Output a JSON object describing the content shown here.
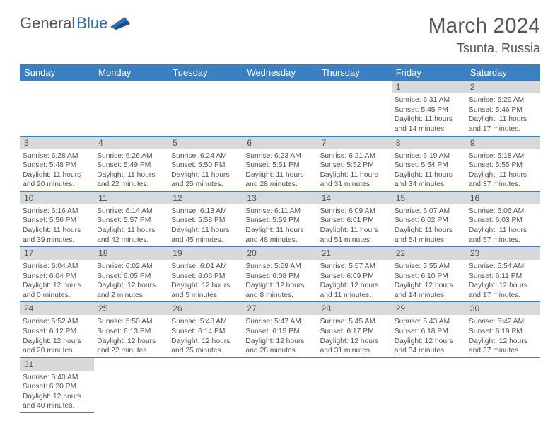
{
  "logo": {
    "word1": "General",
    "word2": "Blue"
  },
  "title": "March 2024",
  "location": "Tsunta, Russia",
  "colors": {
    "header_bg": "#3a81c4",
    "header_fg": "#ffffff",
    "daynum_bg": "#d7d9db",
    "border": "#3a81c4",
    "logo_accent": "#2a6db8"
  },
  "weekdays": [
    "Sunday",
    "Monday",
    "Tuesday",
    "Wednesday",
    "Thursday",
    "Friday",
    "Saturday"
  ],
  "weeks": [
    [
      null,
      null,
      null,
      null,
      null,
      {
        "n": "1",
        "sr": "6:31 AM",
        "ss": "5:45 PM",
        "dl": "11 hours and 14 minutes."
      },
      {
        "n": "2",
        "sr": "6:29 AM",
        "ss": "5:46 PM",
        "dl": "11 hours and 17 minutes."
      }
    ],
    [
      {
        "n": "3",
        "sr": "6:28 AM",
        "ss": "5:48 PM",
        "dl": "11 hours and 20 minutes."
      },
      {
        "n": "4",
        "sr": "6:26 AM",
        "ss": "5:49 PM",
        "dl": "11 hours and 22 minutes."
      },
      {
        "n": "5",
        "sr": "6:24 AM",
        "ss": "5:50 PM",
        "dl": "11 hours and 25 minutes."
      },
      {
        "n": "6",
        "sr": "6:23 AM",
        "ss": "5:51 PM",
        "dl": "11 hours and 28 minutes."
      },
      {
        "n": "7",
        "sr": "6:21 AM",
        "ss": "5:52 PM",
        "dl": "11 hours and 31 minutes."
      },
      {
        "n": "8",
        "sr": "6:19 AM",
        "ss": "5:54 PM",
        "dl": "11 hours and 34 minutes."
      },
      {
        "n": "9",
        "sr": "6:18 AM",
        "ss": "5:55 PM",
        "dl": "11 hours and 37 minutes."
      }
    ],
    [
      {
        "n": "10",
        "sr": "6:16 AM",
        "ss": "5:56 PM",
        "dl": "11 hours and 39 minutes."
      },
      {
        "n": "11",
        "sr": "6:14 AM",
        "ss": "5:57 PM",
        "dl": "11 hours and 42 minutes."
      },
      {
        "n": "12",
        "sr": "6:13 AM",
        "ss": "5:58 PM",
        "dl": "11 hours and 45 minutes."
      },
      {
        "n": "13",
        "sr": "6:11 AM",
        "ss": "5:59 PM",
        "dl": "11 hours and 48 minutes."
      },
      {
        "n": "14",
        "sr": "6:09 AM",
        "ss": "6:01 PM",
        "dl": "11 hours and 51 minutes."
      },
      {
        "n": "15",
        "sr": "6:07 AM",
        "ss": "6:02 PM",
        "dl": "11 hours and 54 minutes."
      },
      {
        "n": "16",
        "sr": "6:06 AM",
        "ss": "6:03 PM",
        "dl": "11 hours and 57 minutes."
      }
    ],
    [
      {
        "n": "17",
        "sr": "6:04 AM",
        "ss": "6:04 PM",
        "dl": "12 hours and 0 minutes."
      },
      {
        "n": "18",
        "sr": "6:02 AM",
        "ss": "6:05 PM",
        "dl": "12 hours and 2 minutes."
      },
      {
        "n": "19",
        "sr": "6:01 AM",
        "ss": "6:06 PM",
        "dl": "12 hours and 5 minutes."
      },
      {
        "n": "20",
        "sr": "5:59 AM",
        "ss": "6:08 PM",
        "dl": "12 hours and 8 minutes."
      },
      {
        "n": "21",
        "sr": "5:57 AM",
        "ss": "6:09 PM",
        "dl": "12 hours and 11 minutes."
      },
      {
        "n": "22",
        "sr": "5:55 AM",
        "ss": "6:10 PM",
        "dl": "12 hours and 14 minutes."
      },
      {
        "n": "23",
        "sr": "5:54 AM",
        "ss": "6:11 PM",
        "dl": "12 hours and 17 minutes."
      }
    ],
    [
      {
        "n": "24",
        "sr": "5:52 AM",
        "ss": "6:12 PM",
        "dl": "12 hours and 20 minutes."
      },
      {
        "n": "25",
        "sr": "5:50 AM",
        "ss": "6:13 PM",
        "dl": "12 hours and 22 minutes."
      },
      {
        "n": "26",
        "sr": "5:48 AM",
        "ss": "6:14 PM",
        "dl": "12 hours and 25 minutes."
      },
      {
        "n": "27",
        "sr": "5:47 AM",
        "ss": "6:15 PM",
        "dl": "12 hours and 28 minutes."
      },
      {
        "n": "28",
        "sr": "5:45 AM",
        "ss": "6:17 PM",
        "dl": "12 hours and 31 minutes."
      },
      {
        "n": "29",
        "sr": "5:43 AM",
        "ss": "6:18 PM",
        "dl": "12 hours and 34 minutes."
      },
      {
        "n": "30",
        "sr": "5:42 AM",
        "ss": "6:19 PM",
        "dl": "12 hours and 37 minutes."
      }
    ],
    [
      {
        "n": "31",
        "sr": "5:40 AM",
        "ss": "6:20 PM",
        "dl": "12 hours and 40 minutes."
      },
      null,
      null,
      null,
      null,
      null,
      null
    ]
  ],
  "labels": {
    "sunrise": "Sunrise:",
    "sunset": "Sunset:",
    "daylight": "Daylight:"
  }
}
